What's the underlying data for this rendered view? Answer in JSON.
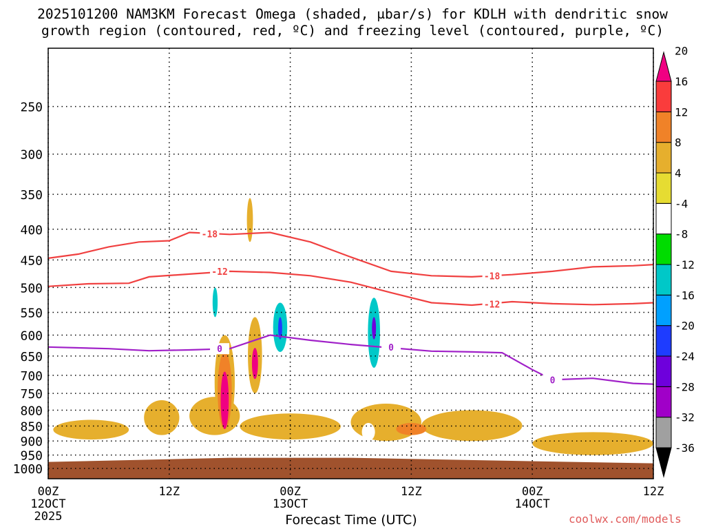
{
  "title_line1": "2025101200 NAM3KM Forecast Omega (shaded, μbar/s) for KDLH with dendritic snow",
  "title_line2": "growth region (contoured, red, ºC) and freezing level (contoured, purple, ºC)",
  "credit": "coolwx.com/models",
  "chart_data": {
    "type": "time-height cross-section",
    "xlabel": "Forecast Time (UTC)",
    "x_ticks": [
      {
        "hour": 0,
        "label": "00Z",
        "sub": "12OCT",
        "sub2": "2025"
      },
      {
        "hour": 12,
        "label": "12Z",
        "sub": "",
        "sub2": ""
      },
      {
        "hour": 24,
        "label": "00Z",
        "sub": "13OCT",
        "sub2": ""
      },
      {
        "hour": 36,
        "label": "12Z",
        "sub": "",
        "sub2": ""
      },
      {
        "hour": 48,
        "label": "00Z",
        "sub": "14OCT",
        "sub2": ""
      },
      {
        "hour": 60,
        "label": "12Z",
        "sub": "",
        "sub2": ""
      }
    ],
    "xlim": [
      0,
      60
    ],
    "ylabel": "",
    "y_axis_scale": "log-pressure (hPa), inverted",
    "ylim": [
      1040,
      200
    ],
    "y_ticks": [
      250,
      300,
      350,
      400,
      450,
      500,
      550,
      600,
      650,
      700,
      750,
      800,
      850,
      900,
      950,
      1000
    ],
    "grid": true,
    "colorbar": {
      "levels": [
        -36,
        -32,
        -28,
        -24,
        -20,
        -16,
        -12,
        -8,
        -4,
        4,
        8,
        12,
        16,
        20
      ],
      "labels": [
        "-36",
        "-32",
        "-28",
        "-24",
        "-20",
        "-16",
        "-12",
        "-8",
        "-4",
        "4",
        "8",
        "12",
        "16",
        "20"
      ],
      "colors": [
        "#000000",
        "#a0a0a0",
        "#a000c8",
        "#6e00dc",
        "#1e3cff",
        "#00a0ff",
        "#00c8c8",
        "#00dc00",
        "#ffffff",
        "#e6dc32",
        "#e6af2d",
        "#f08228",
        "#fa3c3c",
        "#f00082"
      ]
    },
    "contours": [
      {
        "label": "-18",
        "color": "#f04040",
        "points": [
          [
            0,
            447
          ],
          [
            3,
            440
          ],
          [
            6,
            428
          ],
          [
            9,
            420
          ],
          [
            12,
            418
          ],
          [
            14,
            405
          ],
          [
            18,
            408
          ],
          [
            22,
            405
          ],
          [
            26,
            420
          ],
          [
            30,
            445
          ],
          [
            34,
            470
          ],
          [
            38,
            478
          ],
          [
            42,
            480
          ],
          [
            46,
            476
          ],
          [
            50,
            470
          ],
          [
            54,
            462
          ],
          [
            58,
            460
          ],
          [
            60,
            458
          ]
        ],
        "label_at": [
          [
            16,
            407
          ],
          [
            44,
            478
          ]
        ]
      },
      {
        "label": "-12",
        "color": "#f04040",
        "points": [
          [
            0,
            498
          ],
          [
            4,
            493
          ],
          [
            8,
            492
          ],
          [
            10,
            480
          ],
          [
            14,
            475
          ],
          [
            18,
            470
          ],
          [
            22,
            472
          ],
          [
            26,
            478
          ],
          [
            30,
            490
          ],
          [
            34,
            510
          ],
          [
            38,
            530
          ],
          [
            42,
            535
          ],
          [
            46,
            528
          ],
          [
            50,
            532
          ],
          [
            54,
            534
          ],
          [
            58,
            532
          ],
          [
            60,
            530
          ]
        ],
        "label_at": [
          [
            17,
            470
          ],
          [
            44,
            533
          ]
        ]
      },
      {
        "label": "0",
        "color": "#a020c8",
        "points": [
          [
            0,
            628
          ],
          [
            6,
            632
          ],
          [
            10,
            637
          ],
          [
            14,
            635
          ],
          [
            18,
            632
          ],
          [
            22,
            600
          ],
          [
            26,
            612
          ],
          [
            30,
            622
          ],
          [
            34,
            630
          ],
          [
            38,
            638
          ],
          [
            42,
            640
          ],
          [
            45,
            642
          ],
          [
            48,
            685
          ],
          [
            50,
            712
          ],
          [
            54,
            708
          ],
          [
            58,
            722
          ],
          [
            60,
            724
          ]
        ],
        "label_at": [
          [
            17,
            632
          ],
          [
            34,
            628
          ],
          [
            50,
            712
          ]
        ]
      }
    ],
    "omega_regions": [
      {
        "value": 6,
        "t0": 0.5,
        "t1": 8,
        "p_top": 830,
        "p_bot": 895
      },
      {
        "value": 6,
        "t0": 9.5,
        "t1": 13,
        "p_top": 770,
        "p_bot": 880
      },
      {
        "value": 6,
        "t0": 14,
        "t1": 19,
        "p_top": 760,
        "p_bot": 880
      },
      {
        "value": 6,
        "t0": 19,
        "t1": 29,
        "p_top": 810,
        "p_bot": 895
      },
      {
        "value": 6,
        "t0": 30,
        "t1": 37,
        "p_top": 780,
        "p_bot": 900
      },
      {
        "value": 6,
        "t0": 37,
        "t1": 47,
        "p_top": 800,
        "p_bot": 900
      },
      {
        "value": 6,
        "t0": 48,
        "t1": 60,
        "p_top": 870,
        "p_bot": 950
      },
      {
        "value": 10,
        "t0": 34.5,
        "t1": 37.5,
        "p_top": 840,
        "p_bot": 880
      },
      {
        "value": 6,
        "t0": 16.5,
        "t1": 18.5,
        "p_top": 600,
        "p_bot": 860
      },
      {
        "value": 10,
        "t0": 16.8,
        "t1": 18.2,
        "p_top": 640,
        "p_bot": 860
      },
      {
        "value": 22,
        "t0": 17.1,
        "t1": 17.9,
        "p_top": 690,
        "p_bot": 860
      },
      {
        "value": 6,
        "t0": 19.8,
        "t1": 21.2,
        "p_top": 560,
        "p_bot": 750
      },
      {
        "value": 18,
        "t0": 20.2,
        "t1": 20.8,
        "p_top": 630,
        "p_bot": 710
      },
      {
        "value": 6,
        "t0": 19.7,
        "t1": 20.3,
        "p_top": 355,
        "p_bot": 420
      },
      {
        "value": -6,
        "t0": 10.5,
        "t1": 11.3,
        "p_top": 215,
        "p_bot": 310
      },
      {
        "value": -6,
        "t0": 12.4,
        "t1": 13.3,
        "p_top": 390,
        "p_bot": 410
      },
      {
        "value": -6,
        "t0": 16.2,
        "t1": 16.7,
        "p_top": 285,
        "p_bot": 345
      },
      {
        "value": -6,
        "t0": 22.8,
        "t1": 27.2,
        "p_top": 290,
        "p_bot": 445
      },
      {
        "value": -6,
        "t0": 25,
        "t1": 27,
        "p_top": 440,
        "p_bot": 540
      },
      {
        "value": -6,
        "t0": 29.5,
        "t1": 30.5,
        "p_top": 230,
        "p_bot": 300
      },
      {
        "value": -6,
        "t0": 33.5,
        "t1": 34.5,
        "p_top": 305,
        "p_bot": 380
      },
      {
        "value": -6,
        "t0": 21.5,
        "t1": 24.5,
        "p_top": 470,
        "p_bot": 680
      },
      {
        "value": -14,
        "t0": 22.3,
        "t1": 23.7,
        "p_top": 530,
        "p_bot": 640
      },
      {
        "value": -22,
        "t0": 22.8,
        "t1": 23.2,
        "p_top": 560,
        "p_bot": 610
      },
      {
        "value": -6,
        "t0": 30.5,
        "t1": 33.5,
        "p_top": 480,
        "p_bot": 710
      },
      {
        "value": -14,
        "t0": 31.7,
        "t1": 32.9,
        "p_top": 520,
        "p_bot": 680
      },
      {
        "value": -26,
        "t0": 32.1,
        "t1": 32.5,
        "p_top": 560,
        "p_bot": 610
      },
      {
        "value": -6,
        "t0": 16,
        "t1": 17.1,
        "p_top": 470,
        "p_bot": 590
      },
      {
        "value": -14,
        "t0": 16.3,
        "t1": 16.8,
        "p_top": 500,
        "p_bot": 560
      },
      {
        "value": -6,
        "t0": 12.1,
        "t1": 13.1,
        "p_top": 650,
        "p_bot": 730
      },
      {
        "value": -6,
        "t0": 5.6,
        "t1": 6.2,
        "p_top": 655,
        "p_bot": 700
      },
      {
        "value": -6,
        "t0": 31.1,
        "t1": 32.4,
        "p_top": 840,
        "p_bot": 900
      },
      {
        "value": -6,
        "t0": 55.5,
        "t1": 58.5,
        "p_top": 785,
        "p_bot": 820
      },
      {
        "value": -6,
        "t0": 52.6,
        "t1": 53,
        "p_top": 660,
        "p_bot": 740
      }
    ],
    "terrain": {
      "color": "#a0522d",
      "p_top": 960,
      "p_bottom": 1040
    }
  }
}
